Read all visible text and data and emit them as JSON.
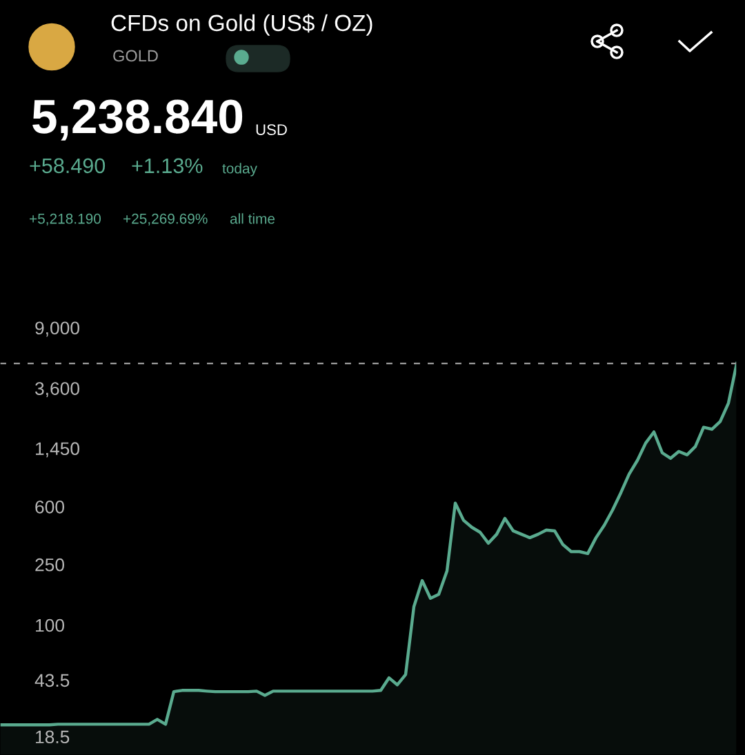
{
  "chart_data": {
    "type": "area",
    "title": "CFDs on Gold (US$ / OZ)",
    "subtitle": "GOLD",
    "annotations": [
      "5,238.840",
      "USD",
      "+58.490",
      "+1.13%",
      "today",
      "+5,218.190",
      "+25,269.69%",
      "all time"
    ],
    "categories": [
      null,
      null,
      null,
      null,
      null,
      null,
      null,
      null,
      null,
      null,
      null,
      null,
      null,
      null,
      null,
      null,
      null,
      null,
      null,
      null,
      null,
      null,
      null,
      null,
      null,
      null,
      null,
      null,
      null,
      null,
      null,
      null,
      null,
      null,
      null,
      null,
      null,
      null,
      null,
      null,
      null,
      null,
      null,
      null,
      null,
      null,
      null,
      null,
      null,
      null,
      null,
      null,
      null,
      null,
      null,
      null,
      null,
      null,
      null,
      null,
      null,
      null,
      null,
      null,
      null,
      null,
      null,
      null,
      null,
      null,
      null,
      null,
      null,
      null,
      null,
      null,
      null,
      null,
      null,
      null,
      null,
      null,
      null,
      null,
      null,
      null,
      null,
      null,
      null,
      null
    ],
    "series": [
      {
        "color": "#5aab8f",
        "values": [
          22.1,
          22.1,
          22.1,
          22.1,
          22.1,
          22.1,
          22.1,
          22.3,
          22.3,
          22.3,
          22.3,
          22.3,
          22.3,
          22.3,
          22.3,
          22.3,
          22.3,
          22.3,
          22.3,
          24,
          22.3,
          36.5,
          37.2,
          37.2,
          37.2,
          36.8,
          36.5,
          36.5,
          36.5,
          36.5,
          36.5,
          36.8,
          34.5,
          36.8,
          36.8,
          36.8,
          36.8,
          36.8,
          36.8,
          36.8,
          36.8,
          36.8,
          36.8,
          36.8,
          36.8,
          36.8,
          37.2,
          45,
          40.5,
          47.3,
          132,
          196,
          150,
          159,
          227,
          632,
          488,
          439,
          407,
          345,
          395,
          502,
          416,
          395,
          375,
          395,
          421,
          416,
          338,
          304,
          304,
          295,
          375,
          453,
          570,
          740,
          982,
          1208,
          1570,
          1858,
          1355,
          1247,
          1384,
          1315,
          1489,
          1995,
          1936,
          2173,
          2877,
          5238.84
        ]
      }
    ],
    "log": true,
    "ylim": [
      14,
      13000
    ],
    "yticks": [
      {
        "value": 18.5,
        "label": "18.5"
      },
      {
        "value": 43.5,
        "label": "43.5"
      },
      100,
      250,
      600,
      {
        "value": 1450,
        "label": "1,450"
      },
      {
        "value": 3600,
        "label": "3,600"
      },
      {
        "value": 9000,
        "label": "9,000"
      }
    ],
    "ref_lines": [
      {
        "axis": "y",
        "value": 5238.84,
        "color": "#9e9e9e",
        "line_style": "dashed"
      }
    ],
    "grid": false,
    "tick_labels": "y"
  }
}
